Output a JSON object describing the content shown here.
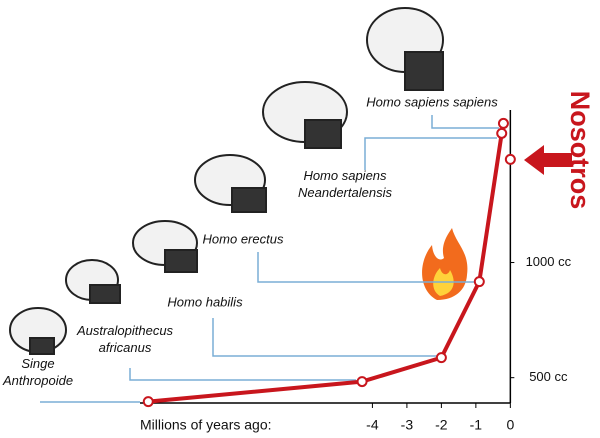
{
  "chart_data": {
    "type": "line",
    "x_label": "Millions of years ago:",
    "x": [
      -10.5,
      -4.3,
      -2.0,
      -0.9,
      -0.25,
      -0.2
    ],
    "series": [
      {
        "color": "#c8161d",
        "values": [
          396,
          483,
          587,
          917,
          1561,
          1604
        ]
      }
    ],
    "point_labels": [
      [
        "Singe",
        "Anthropoide"
      ],
      [
        "Australopithecus",
        "africanus"
      ],
      [
        "Homo habilis"
      ],
      [
        "Homo erectus"
      ],
      [
        "Homo sapiens",
        "Neandertalensis"
      ],
      [
        "Homo sapiens sapiens"
      ]
    ],
    "highlight": {
      "label": "Nosotros",
      "x": 0,
      "y": 1448,
      "color": "#c8161d"
    },
    "xlim": [
      -14.8,
      2.6
    ],
    "ylim": [
      390,
      2140
    ],
    "xticks": [
      -4,
      -3,
      -2,
      -1,
      0
    ],
    "yticks": [
      {
        "value": 500,
        "label": "500 cc"
      },
      {
        "value": 1000,
        "label": "1000 cc"
      }
    ]
  }
}
